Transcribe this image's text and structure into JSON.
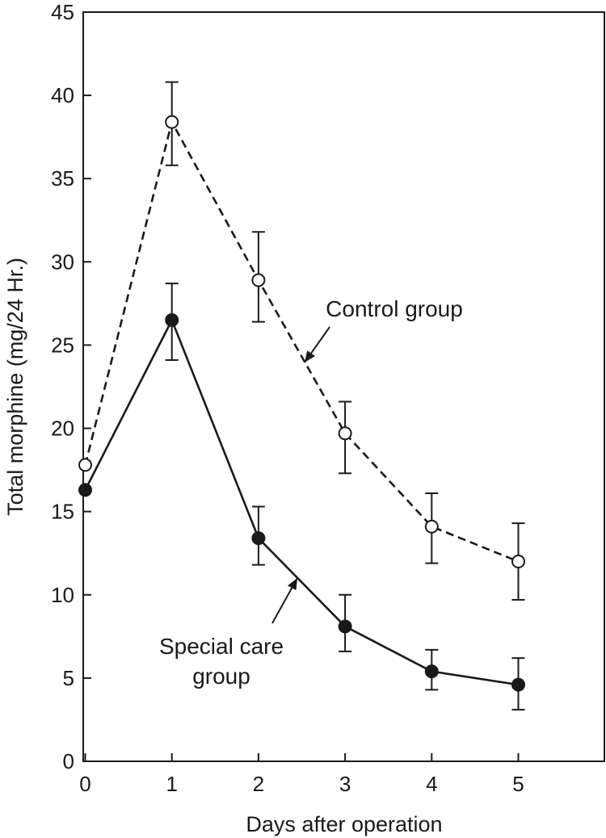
{
  "chart_data": {
    "type": "line",
    "title": "",
    "xlabel": "Days after operation",
    "ylabel": "Total morphine (mg/24 Hr.)",
    "xlim": [
      0,
      6
    ],
    "ylim": [
      0,
      45
    ],
    "x_ticks": [
      0,
      1,
      2,
      3,
      4,
      5
    ],
    "y_ticks": [
      0,
      5,
      10,
      15,
      20,
      25,
      30,
      35,
      40,
      45
    ],
    "grid": false,
    "legend": "none",
    "series": [
      {
        "name": "Control group",
        "marker": "open-circle",
        "line_style": "dashed",
        "color": "#1a1a1a",
        "x": [
          0,
          1,
          2,
          3,
          4,
          5
        ],
        "y": [
          17.8,
          38.4,
          28.9,
          19.7,
          14.1,
          12.0
        ],
        "err_low": [
          null,
          35.8,
          26.4,
          17.3,
          11.9,
          9.7
        ],
        "err_high": [
          null,
          40.8,
          31.8,
          21.6,
          16.1,
          14.3
        ]
      },
      {
        "name": "Special care group",
        "marker": "filled-circle",
        "line_style": "solid",
        "color": "#1a1a1a",
        "x": [
          0,
          1,
          2,
          3,
          4,
          5
        ],
        "y": [
          16.3,
          26.5,
          13.4,
          8.1,
          5.4,
          4.6
        ],
        "err_low": [
          null,
          24.1,
          11.8,
          6.6,
          4.3,
          3.1
        ],
        "err_high": [
          null,
          28.7,
          15.3,
          10.0,
          6.7,
          6.2
        ]
      }
    ],
    "annotations": [
      {
        "lines": [
          "Control group"
        ],
        "series": "Control group"
      },
      {
        "lines": [
          "Special care",
          "group"
        ],
        "series": "Special care group"
      }
    ]
  }
}
